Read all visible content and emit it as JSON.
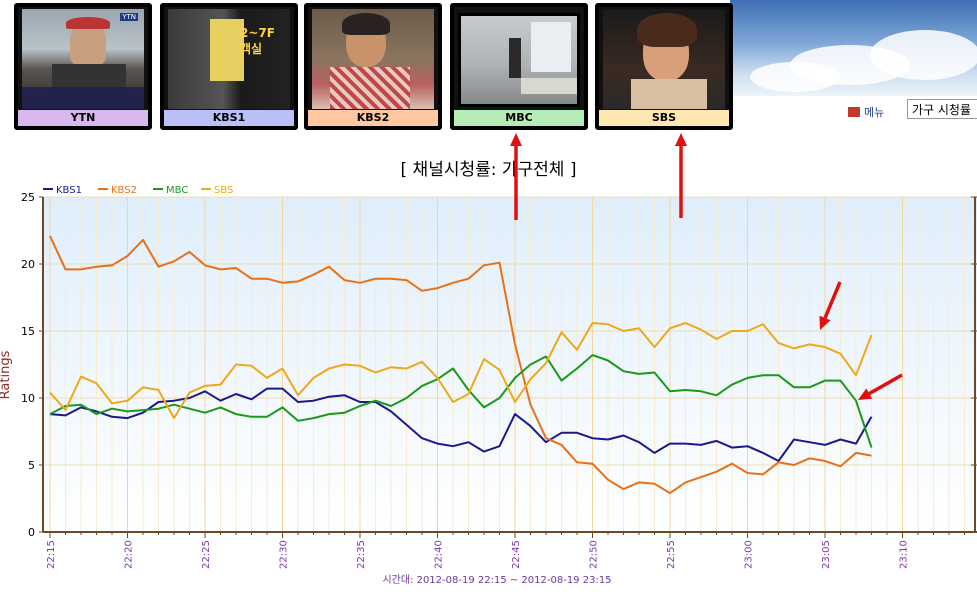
{
  "channels": [
    {
      "label": "YTN",
      "border": "#7b2fbf",
      "label_bg": "#d9b8f0"
    },
    {
      "label": "KBS1",
      "border": "#1d2fbf",
      "label_bg": "#b8c0f5"
    },
    {
      "label": "KBS2",
      "border": "#ff6a1a",
      "label_bg": "#ffc8a0"
    },
    {
      "label": "MBC",
      "border": "#1aa31a",
      "label_bg": "#b6ecb6"
    },
    {
      "label": "SBS",
      "border": "#f5a51a",
      "label_bg": "#ffe8b0"
    }
  ],
  "thumb_texts": {
    "kbs1": "2~7F 객실",
    "ytn_logo": "YTN"
  },
  "menu_label": "메뉴",
  "search_value": "가구 시청률",
  "chart_data": {
    "type": "line",
    "title": "[ 채널시청률: 가구전체 ]",
    "ylabel": "Ratings",
    "xlabel": "시간대: 2012-08-19 22:15 ~ 2012-08-19 23:15",
    "ylim": [
      0,
      25
    ],
    "y_ticks": [
      0,
      5,
      10,
      15,
      20,
      25
    ],
    "x_ticks": [
      "22:15",
      "22:20",
      "22:25",
      "22:30",
      "22:35",
      "22:40",
      "22:45",
      "22:50",
      "22:55",
      "23:00",
      "23:05",
      "23:10"
    ],
    "x_start_minutes": 1335,
    "x_end_minutes": 1396,
    "grid": true,
    "legend_position": "top-left",
    "series": [
      {
        "name": "KBS1",
        "color": "#1a1a8c",
        "values": [
          8.8,
          8.7,
          9.3,
          9.0,
          8.6,
          8.5,
          8.9,
          9.7,
          9.8,
          10.0,
          10.5,
          9.8,
          10.3,
          9.9,
          10.7,
          10.7,
          9.7,
          9.8,
          10.1,
          10.2,
          9.7,
          9.7,
          9.0,
          8.0,
          7.0,
          6.6,
          6.4,
          6.7,
          6.0,
          6.4,
          8.8,
          7.9,
          6.7,
          7.4,
          7.4,
          7.0,
          6.9,
          7.2,
          6.7,
          5.9,
          6.6,
          6.6,
          6.5,
          6.8,
          6.3,
          6.4,
          5.9,
          5.3,
          6.9,
          6.7,
          6.5,
          6.9,
          6.6,
          8.6
        ]
      },
      {
        "name": "KBS2",
        "color": "#e8701a",
        "values": [
          22.1,
          19.6,
          19.6,
          19.8,
          19.9,
          20.6,
          21.8,
          19.8,
          20.2,
          20.9,
          19.9,
          19.6,
          19.7,
          18.9,
          18.9,
          18.6,
          18.7,
          19.2,
          19.8,
          18.8,
          18.6,
          18.9,
          18.9,
          18.8,
          18.0,
          18.2,
          18.6,
          18.9,
          19.9,
          20.1,
          14.0,
          9.5,
          7.0,
          6.5,
          5.2,
          5.1,
          3.9,
          3.2,
          3.7,
          3.6,
          2.9,
          3.7,
          4.1,
          4.5,
          5.1,
          4.4,
          4.3,
          5.2,
          5.0,
          5.5,
          5.3,
          4.9,
          5.9,
          5.7
        ]
      },
      {
        "name": "MBC",
        "color": "#1a9a1a",
        "values": [
          8.8,
          9.4,
          9.5,
          8.8,
          9.2,
          9.0,
          9.1,
          9.2,
          9.5,
          9.2,
          8.9,
          9.3,
          8.8,
          8.6,
          8.6,
          9.3,
          8.3,
          8.5,
          8.8,
          8.9,
          9.4,
          9.8,
          9.4,
          10.0,
          10.9,
          11.4,
          12.2,
          10.6,
          9.3,
          10.0,
          11.5,
          12.5,
          13.1,
          11.3,
          12.2,
          13.2,
          12.8,
          12.0,
          11.8,
          11.9,
          10.5,
          10.6,
          10.5,
          10.2,
          11.0,
          11.5,
          11.7,
          11.7,
          10.8,
          10.8,
          11.3,
          11.3,
          9.8,
          6.3
        ]
      },
      {
        "name": "SBS",
        "color": "#f0a81a",
        "values": [
          10.4,
          9.1,
          11.6,
          11.1,
          9.6,
          9.8,
          10.8,
          10.6,
          8.5,
          10.4,
          10.9,
          11.0,
          12.5,
          12.4,
          11.5,
          12.2,
          10.2,
          11.5,
          12.2,
          12.5,
          12.4,
          11.9,
          12.3,
          12.2,
          12.7,
          11.5,
          9.7,
          10.3,
          12.9,
          12.1,
          9.7,
          11.4,
          12.6,
          14.9,
          13.6,
          15.6,
          15.5,
          15.0,
          15.2,
          13.8,
          15.2,
          15.6,
          15.1,
          14.4,
          15.0,
          15.0,
          15.5,
          14.1,
          13.7,
          14.0,
          13.8,
          13.3,
          11.7,
          14.7
        ]
      }
    ]
  }
}
